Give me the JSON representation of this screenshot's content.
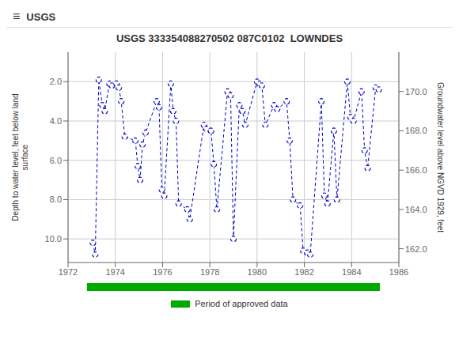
{
  "chart_data": {
    "type": "line",
    "title": "USGS 333354088270502 087C0102  LOWNDES",
    "annotations": [
      "≡",
      "USGS"
    ],
    "ylabel": "Depth to water level, feet below land\nsurface",
    "y2label": "Groundwater level above NGVD 1929, feet",
    "x": [
      1973.05,
      1973.15,
      1973.3,
      1973.45,
      1973.55,
      1973.75,
      1973.85,
      1974.05,
      1974.15,
      1974.25,
      1974.4,
      1974.85,
      1974.95,
      1975.05,
      1975.15,
      1975.28,
      1975.75,
      1975.85,
      1975.97,
      1976.07,
      1976.35,
      1976.45,
      1976.57,
      1976.68,
      1977.05,
      1977.15,
      1977.75,
      1977.85,
      1978.05,
      1978.17,
      1978.3,
      1978.75,
      1978.88,
      1979.0,
      1979.25,
      1979.38,
      1979.5,
      1980.0,
      1980.1,
      1980.2,
      1980.35,
      1980.72,
      1980.85,
      1981.25,
      1981.38,
      1981.52,
      1981.82,
      1981.95,
      1982.12,
      1982.25,
      1982.72,
      1982.85,
      1982.98,
      1983.25,
      1983.38,
      1983.82,
      1983.95,
      1984.08,
      1984.42,
      1984.55,
      1984.68,
      1985.02,
      1985.15
    ],
    "values": [
      10.2,
      10.8,
      1.9,
      3.2,
      3.5,
      2.1,
      2.2,
      2.1,
      2.3,
      3.0,
      4.8,
      5.0,
      6.3,
      7.0,
      5.2,
      4.6,
      3.0,
      3.3,
      7.5,
      7.8,
      2.1,
      3.5,
      4.0,
      8.2,
      8.5,
      9.0,
      4.2,
      4.4,
      4.5,
      6.2,
      8.5,
      2.5,
      2.7,
      10.0,
      3.2,
      3.5,
      4.2,
      2.0,
      2.1,
      2.2,
      4.2,
      3.2,
      3.4,
      3.0,
      5.0,
      8.0,
      8.3,
      10.6,
      10.7,
      10.8,
      3.0,
      7.8,
      8.2,
      4.5,
      8.0,
      2.0,
      3.8,
      4.0,
      2.5,
      5.5,
      6.4,
      2.3,
      2.4
    ],
    "color": "#0000cc",
    "marker": "circle",
    "line_style": "dashed",
    "xlim": [
      1972,
      1986
    ],
    "xticks": [
      1972,
      1974,
      1976,
      1978,
      1980,
      1982,
      1984,
      1986
    ],
    "ylim": [
      11.2,
      0.5
    ],
    "yticks": [
      {
        "value": 2.0,
        "label": "2.0"
      },
      {
        "value": 4.0,
        "label": "4.0"
      },
      {
        "value": 6.0,
        "label": "6.0"
      },
      {
        "value": 8.0,
        "label": "8.0"
      },
      {
        "value": 10.0,
        "label": "10.0"
      }
    ],
    "y2lim": [
      161.3,
      172.0
    ],
    "y2ticks": [
      {
        "value": 162.0,
        "label": "162.0"
      },
      {
        "value": 164.0,
        "label": "164.0"
      },
      {
        "value": 166.0,
        "label": "166.0"
      },
      {
        "value": 168.0,
        "label": "168.0"
      },
      {
        "value": 170.0,
        "label": "170.0"
      }
    ],
    "grid": true,
    "approved_period": {
      "name": "Period of approved data",
      "color": "#00aa00",
      "start": 1972.8,
      "end": 1985.2
    }
  }
}
